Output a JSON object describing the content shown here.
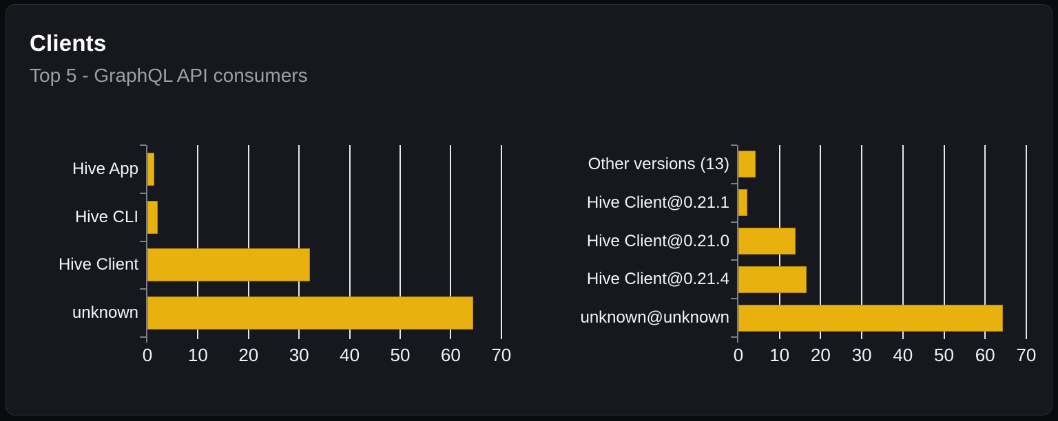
{
  "card": {
    "title": "Clients",
    "subtitle": "Top 5 - GraphQL API consumers"
  },
  "colors": {
    "bar": "#e9b10d",
    "gridline": "#e3e7ef",
    "axis": "#7a7f88",
    "label": "#f3f4f6",
    "title": "#ffffff",
    "subtitle": "#99a0a8",
    "card_background": "#16181d",
    "card_border": "#2b2e36",
    "page_background": "#0a0b0f"
  },
  "chart_data": [
    {
      "type": "bar",
      "orientation": "horizontal",
      "name": "clients-by-name",
      "categories": [
        "Hive App",
        "Hive CLI",
        "Hive Client",
        "unknown"
      ],
      "values": [
        1.3,
        2.0,
        32.2,
        64.5
      ],
      "xticks": [
        0,
        10,
        20,
        30,
        40,
        50,
        60,
        70
      ],
      "xlim": [
        0,
        70
      ],
      "xlabel": "",
      "ylabel": "",
      "grid": true,
      "legend": false
    },
    {
      "type": "bar",
      "orientation": "horizontal",
      "name": "clients-by-version",
      "categories": [
        "Other versions (13)",
        "Hive Client@0.21.1",
        "Hive Client@0.21.0",
        "Hive Client@0.21.4",
        "unknown@unknown"
      ],
      "values": [
        4.2,
        2.1,
        13.9,
        16.6,
        64.3
      ],
      "xticks": [
        0,
        10,
        20,
        30,
        40,
        50,
        60,
        70
      ],
      "xlim": [
        0,
        70
      ],
      "xlabel": "",
      "ylabel": "",
      "grid": true,
      "legend": false
    }
  ]
}
